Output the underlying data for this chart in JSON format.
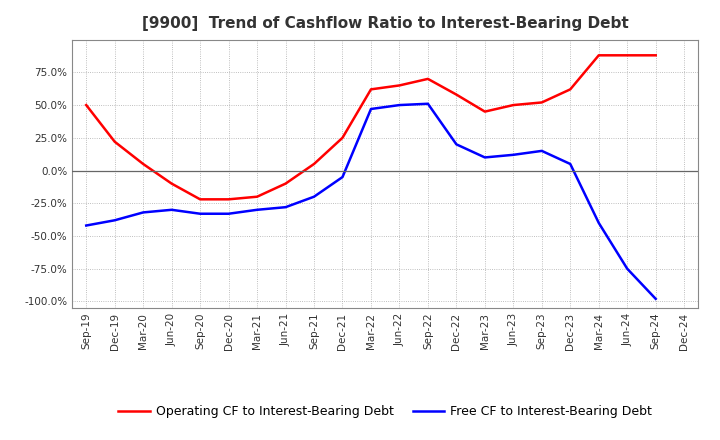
{
  "title": "[9900]  Trend of Cashflow Ratio to Interest-Bearing Debt",
  "x_labels": [
    "Sep-19",
    "Dec-19",
    "Mar-20",
    "Jun-20",
    "Sep-20",
    "Dec-20",
    "Mar-21",
    "Jun-21",
    "Sep-21",
    "Dec-21",
    "Mar-22",
    "Jun-22",
    "Sep-22",
    "Dec-22",
    "Mar-23",
    "Jun-23",
    "Sep-23",
    "Dec-23",
    "Mar-24",
    "Jun-24",
    "Sep-24",
    "Dec-24"
  ],
  "operating_cf": [
    50.0,
    22.0,
    5.0,
    -10.0,
    -22.0,
    -22.0,
    -20.0,
    -10.0,
    5.0,
    25.0,
    62.0,
    65.0,
    70.0,
    58.0,
    45.0,
    50.0,
    52.0,
    62.0,
    88.0,
    88.0,
    88.0,
    null
  ],
  "free_cf": [
    -42.0,
    -38.0,
    -32.0,
    -30.0,
    -33.0,
    -33.0,
    -30.0,
    -28.0,
    -20.0,
    -5.0,
    47.0,
    50.0,
    51.0,
    20.0,
    10.0,
    12.0,
    15.0,
    5.0,
    -40.0,
    -75.0,
    -98.0,
    null
  ],
  "ylim": [
    -105.0,
    100.0
  ],
  "yticks": [
    -100.0,
    -75.0,
    -50.0,
    -25.0,
    0.0,
    25.0,
    50.0,
    75.0
  ],
  "operating_color": "#ff0000",
  "free_color": "#0000ff",
  "background_color": "#ffffff",
  "grid_color": "#aaaaaa",
  "legend_op_label": "Operating CF to Interest-Bearing Debt",
  "legend_free_label": "Free CF to Interest-Bearing Debt",
  "title_color": "#333333"
}
